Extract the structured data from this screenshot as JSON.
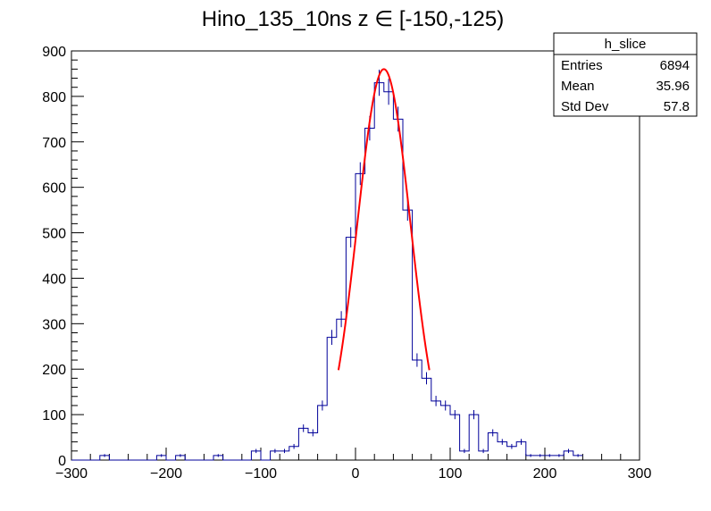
{
  "chart_data": {
    "type": "histogram",
    "title": "Hino_135_10ns z  ∈ [-150,-125)",
    "xlabel": "",
    "ylabel": "",
    "xlim": [
      -300,
      300
    ],
    "ylim": [
      0,
      900
    ],
    "x_ticks": [
      "−300",
      "−200",
      "−100",
      "0",
      "100",
      "200",
      "300"
    ],
    "y_ticks": [
      "0",
      "100",
      "200",
      "300",
      "400",
      "500",
      "600",
      "700",
      "800",
      "900"
    ],
    "bin_width": 10,
    "bin_edges_start": -300,
    "values": [
      0,
      0,
      0,
      10,
      0,
      0,
      0,
      0,
      0,
      10,
      0,
      10,
      0,
      0,
      0,
      10,
      0,
      0,
      0,
      20,
      0,
      20,
      20,
      30,
      70,
      60,
      120,
      270,
      310,
      490,
      630,
      730,
      830,
      810,
      750,
      550,
      220,
      180,
      130,
      120,
      100,
      20,
      100,
      20,
      60,
      40,
      30,
      40,
      10,
      10,
      10,
      10,
      20,
      10
    ],
    "series": [
      {
        "name": "h_slice",
        "color": "#000099",
        "style": "step-with-errors"
      },
      {
        "name": "fit",
        "color": "#ff0000",
        "style": "gaussian-curve",
        "constant": 860,
        "mean": 30,
        "sigma": 28,
        "range": [
          -18,
          78
        ]
      }
    ],
    "grid": false,
    "legend": "top-right",
    "stats_box": {
      "title": "h_slice",
      "rows": [
        {
          "label": "Entries",
          "value": "6894"
        },
        {
          "label": "Mean",
          "value": "35.96"
        },
        {
          "label": "Std Dev",
          "value": "57.8"
        }
      ]
    }
  }
}
